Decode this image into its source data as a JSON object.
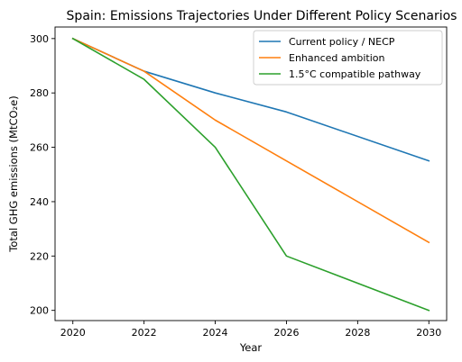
{
  "chart_data": {
    "type": "line",
    "title": "Spain: Emissions Trajectories Under Different Policy Scenarios",
    "xlabel": "Year",
    "ylabel": "Total GHG emissions (MtCO₂e)",
    "x": [
      2020,
      2022,
      2024,
      2026,
      2030
    ],
    "xlim": [
      2019.5,
      2030.5
    ],
    "ylim": [
      196.25,
      304.25
    ],
    "xticks": [
      2020,
      2022,
      2024,
      2026,
      2028,
      2030
    ],
    "yticks": [
      200,
      220,
      240,
      260,
      280,
      300
    ],
    "grid": false,
    "legend": "top-right",
    "series": [
      {
        "name": "Current policy / NECP",
        "color": "#1f77b4",
        "values": [
          300,
          288,
          280,
          273,
          255
        ]
      },
      {
        "name": "Enhanced ambition",
        "color": "#ff7f0e",
        "values": [
          300,
          288,
          270,
          255,
          225
        ]
      },
      {
        "name": "1.5°C compatible pathway",
        "color": "#2ca02c",
        "values": [
          300,
          285,
          260,
          220,
          200
        ]
      }
    ]
  }
}
